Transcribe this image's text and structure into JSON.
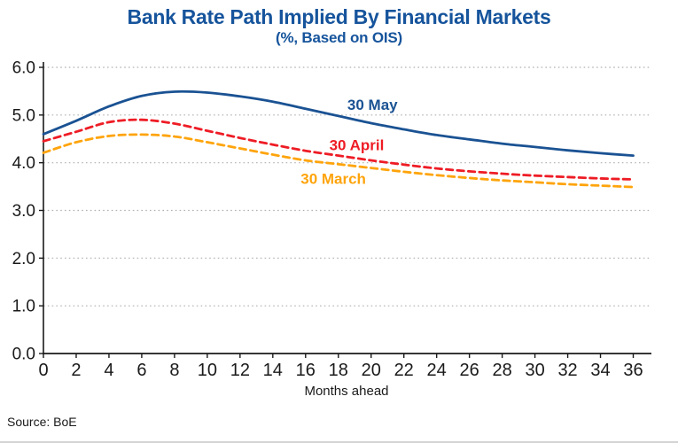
{
  "header": {
    "title": "Bank Rate Path Implied By Financial Markets",
    "subtitle": "(%, Based on OIS)"
  },
  "source_note": "Source: BoE",
  "colors": {
    "title_blue": "#16549c",
    "may_blue": "#1a5293",
    "april_red": "#ee1c25",
    "march_orange": "#ffa40b",
    "gridline": "#b0b0b0",
    "axis": "#1a1a1a"
  },
  "chart_data": {
    "type": "line",
    "title": "Bank Rate Path Implied By Financial Markets",
    "subtitle": "(%, Based on OIS)",
    "xlabel": "Months ahead",
    "ylabel": "",
    "xlim": [
      0,
      37
    ],
    "ylim": [
      0,
      6
    ],
    "grid": "horizontal-dotted",
    "legend": "inline-labels",
    "x": [
      0,
      2,
      4,
      6,
      8,
      10,
      12,
      14,
      16,
      18,
      20,
      22,
      24,
      26,
      28,
      30,
      32,
      34,
      36
    ],
    "x_ticks": [
      0,
      2,
      4,
      6,
      8,
      10,
      12,
      14,
      16,
      18,
      20,
      22,
      24,
      26,
      28,
      30,
      32,
      34,
      36
    ],
    "y_ticks": [
      {
        "value": 0,
        "label": "0.0"
      },
      {
        "value": 1,
        "label": "1.0"
      },
      {
        "value": 2,
        "label": "2.0"
      },
      {
        "value": 3,
        "label": "3.0"
      },
      {
        "value": 4,
        "label": "4.0"
      },
      {
        "value": 5,
        "label": "5.0"
      },
      {
        "value": 6,
        "label": "6.0"
      }
    ],
    "series": [
      {
        "name": "30 May",
        "color": "#1a5293",
        "style": "solid",
        "values": [
          4.6,
          4.88,
          5.18,
          5.4,
          5.49,
          5.47,
          5.39,
          5.28,
          5.13,
          4.98,
          4.83,
          4.7,
          4.58,
          4.49,
          4.4,
          4.33,
          4.26,
          4.2,
          4.15
        ]
      },
      {
        "name": "30 April",
        "color": "#ee1c25",
        "style": "dashed",
        "values": [
          4.45,
          4.65,
          4.85,
          4.9,
          4.82,
          4.67,
          4.52,
          4.38,
          4.25,
          4.15,
          4.05,
          3.96,
          3.88,
          3.82,
          3.77,
          3.73,
          3.7,
          3.67,
          3.65
        ]
      },
      {
        "name": "30 March",
        "color": "#ffa40b",
        "style": "dashed",
        "values": [
          4.21,
          4.43,
          4.56,
          4.59,
          4.55,
          4.43,
          4.3,
          4.17,
          4.05,
          3.97,
          3.89,
          3.81,
          3.74,
          3.68,
          3.63,
          3.59,
          3.55,
          3.52,
          3.49
        ]
      }
    ],
    "annotations": [
      {
        "text": "30 May",
        "x": 18.55,
        "y": 5.22,
        "color": "#1a5293"
      },
      {
        "text": "30 April",
        "x": 17.45,
        "y": 4.37,
        "color": "#ee1c25"
      },
      {
        "text": "30 March",
        "x": 15.7,
        "y": 3.67,
        "color": "#ffa40b"
      }
    ]
  }
}
